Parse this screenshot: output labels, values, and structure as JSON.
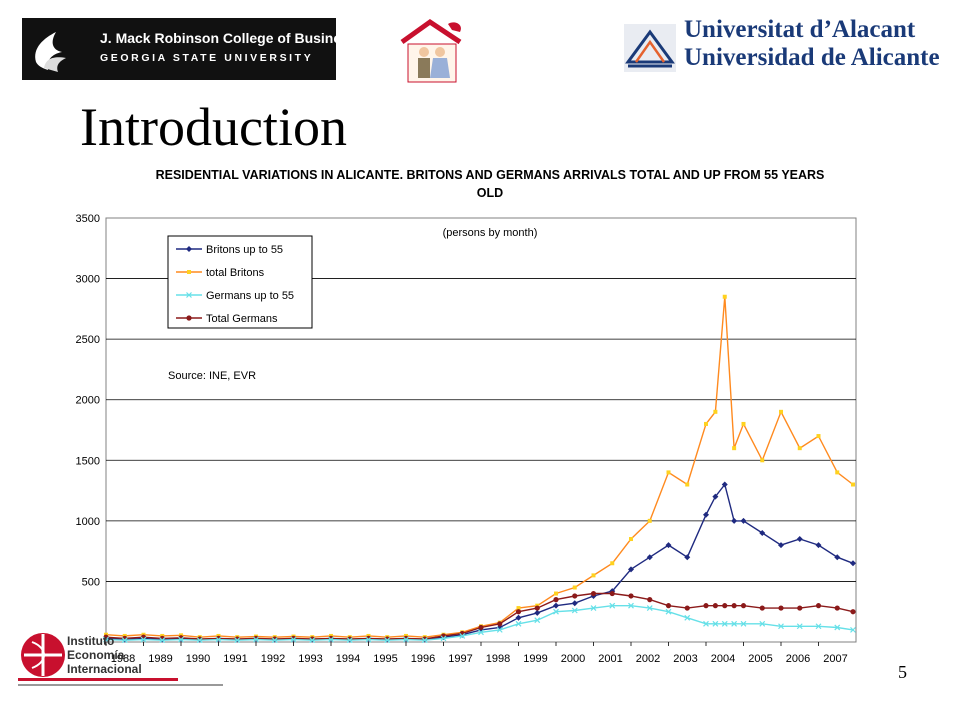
{
  "logos": {
    "gsu": {
      "line1": "J. Mack Robinson College of Business",
      "line2": "GEORGIA STATE UNIVERSITY"
    },
    "ua": {
      "line1": "Universitat d’Alacant",
      "line2": "Universidad de Alicante"
    },
    "iei": {
      "line1": "Instituto",
      "line2": "Economía",
      "line3": "Internacional"
    }
  },
  "slide": {
    "title": "Introduction",
    "page_number": "5"
  },
  "chart_data": {
    "type": "line",
    "title": "RESIDENTIAL VARIATIONS IN ALICANTE. BRITONS AND GERMANS ARRIVALS TOTAL AND UP FROM 55 YEARS OLD",
    "subtitle": "(persons by month)",
    "source_note": "Source: INE, EVR",
    "xlabel": "",
    "ylabel": "",
    "ylim": [
      0,
      3500
    ],
    "yticks": [
      500,
      1000,
      1500,
      2000,
      2500,
      3000,
      3500
    ],
    "xlim": [
      1988,
      2008
    ],
    "x_ticks": [
      "1988",
      "1989",
      "1990",
      "1991",
      "1992",
      "1993",
      "1994",
      "1995",
      "1996",
      "1997",
      "1998",
      "1999",
      "2000",
      "2001",
      "2002",
      "2003",
      "2004",
      "2005",
      "2006",
      "2007"
    ],
    "grid": "horizontal",
    "legend_position": "top-left",
    "colors": {
      "britons55": "#1f2a80",
      "totalBritons": "#ff8a1f",
      "germans55": "#66e0e8",
      "totalGermans": "#8b1a1a",
      "marker_total_britons": "#ffd21f"
    },
    "x": [
      "1988",
      "1988.5",
      "1989",
      "1989.5",
      "1990",
      "1990.5",
      "1991",
      "1991.5",
      "1992",
      "1992.5",
      "1993",
      "1993.5",
      "1994",
      "1994.5",
      "1995",
      "1995.5",
      "1996",
      "1996.5",
      "1997",
      "1997.5",
      "1998",
      "1998.5",
      "1999",
      "1999.5",
      "2000",
      "2000.5",
      "2001",
      "2001.5",
      "2002",
      "2002.5",
      "2003",
      "2003.5",
      "2004",
      "2004.25",
      "2004.5",
      "2004.75",
      "2005",
      "2005.5",
      "2006",
      "2006.5",
      "2007",
      "2007.5",
      "2007.92"
    ],
    "series": [
      {
        "name": "Britons up to 55",
        "key": "britons55",
        "values": [
          30,
          20,
          30,
          20,
          25,
          20,
          25,
          20,
          25,
          20,
          25,
          20,
          25,
          20,
          25,
          20,
          25,
          20,
          40,
          60,
          100,
          120,
          200,
          240,
          300,
          320,
          380,
          420,
          600,
          700,
          800,
          700,
          1050,
          1200,
          1300,
          1000,
          1000,
          900,
          800,
          850,
          800,
          700,
          650
        ]
      },
      {
        "name": "total Britons",
        "key": "totalBritons",
        "values": [
          60,
          50,
          60,
          50,
          55,
          40,
          50,
          40,
          45,
          40,
          45,
          40,
          50,
          40,
          50,
          40,
          50,
          40,
          60,
          80,
          130,
          160,
          280,
          300,
          400,
          450,
          550,
          650,
          850,
          1000,
          1400,
          1300,
          1800,
          1900,
          2850,
          1600,
          1800,
          1500,
          1900,
          1600,
          1700,
          1400,
          1300
        ]
      },
      {
        "name": "Germans up to 55",
        "key": "germans55",
        "values": [
          20,
          15,
          20,
          15,
          20,
          15,
          20,
          15,
          20,
          15,
          20,
          15,
          20,
          15,
          20,
          15,
          20,
          15,
          30,
          50,
          80,
          100,
          150,
          180,
          250,
          260,
          280,
          300,
          300,
          280,
          250,
          200,
          150,
          150,
          150,
          150,
          150,
          150,
          130,
          130,
          130,
          120,
          100
        ]
      },
      {
        "name": "Total Germans",
        "key": "totalGermans",
        "values": [
          40,
          30,
          40,
          30,
          35,
          25,
          30,
          25,
          30,
          25,
          30,
          25,
          30,
          25,
          30,
          25,
          30,
          25,
          50,
          70,
          120,
          150,
          250,
          280,
          350,
          380,
          400,
          400,
          380,
          350,
          300,
          280,
          300,
          300,
          300,
          300,
          300,
          280,
          280,
          280,
          300,
          280,
          250
        ]
      }
    ]
  }
}
